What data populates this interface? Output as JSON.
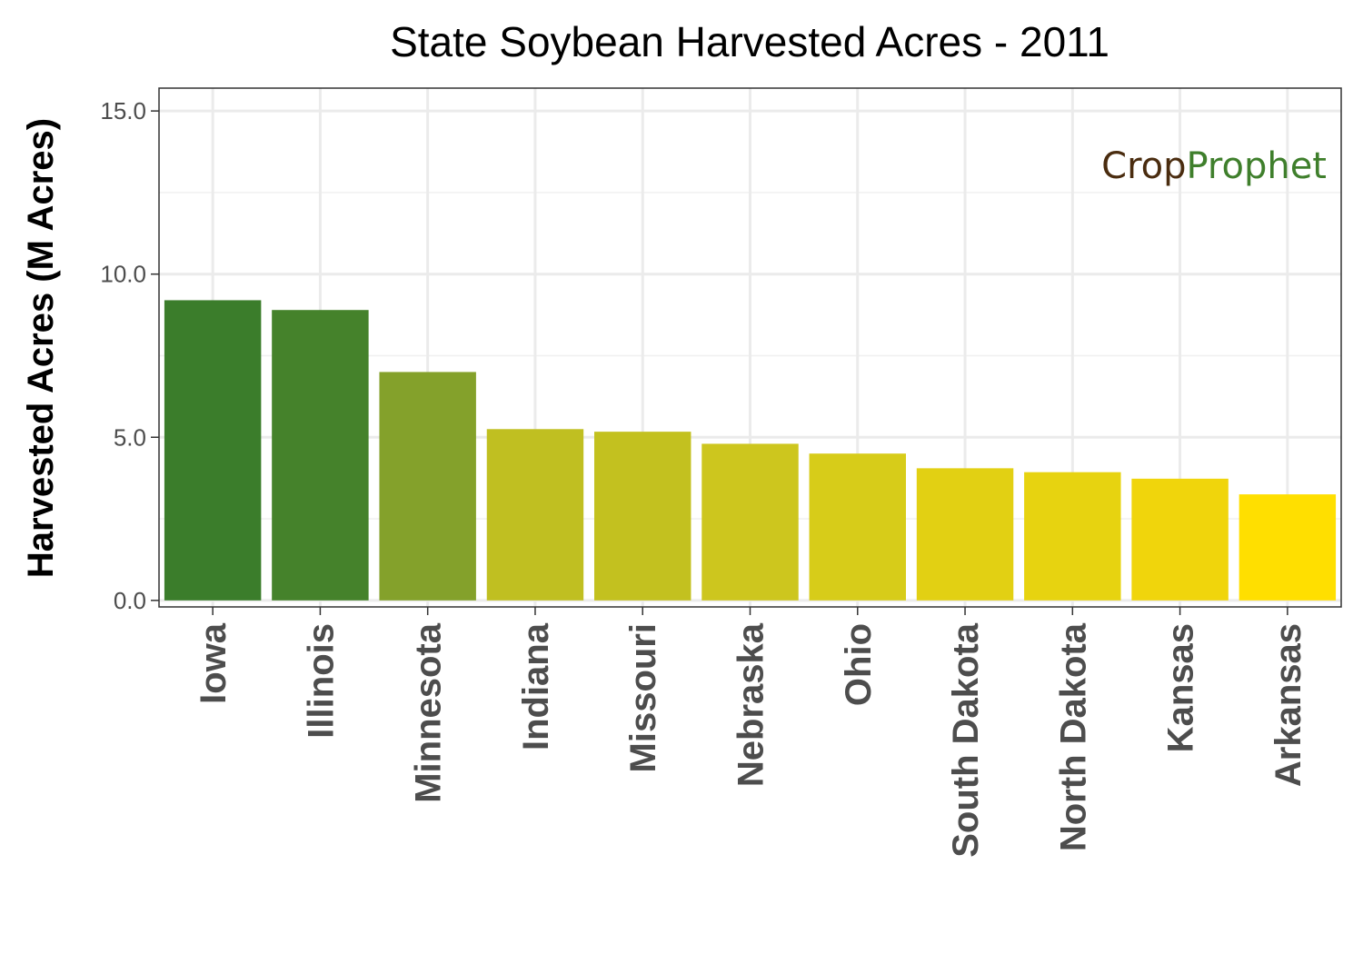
{
  "chart_data": {
    "type": "bar",
    "title": "State Soybean Harvested Acres - 2011",
    "xlabel": "",
    "ylabel": "Harvested Acres (M Acres)",
    "ylim": [
      -0.2,
      15.7
    ],
    "yticks": [
      0,
      5,
      10,
      15
    ],
    "ytick_labels": [
      "0.0",
      "5.0",
      "10.0",
      "15.0"
    ],
    "grid": true,
    "legend": "none",
    "categories": [
      "Iowa",
      "Illinois",
      "Minnesota",
      "Indiana",
      "Missouri",
      "Nebraska",
      "Ohio",
      "South Dakota",
      "North Dakota",
      "Kansas",
      "Arkansas"
    ],
    "values": [
      9.2,
      8.9,
      7.0,
      5.25,
      5.17,
      4.8,
      4.5,
      4.05,
      3.93,
      3.73,
      3.25
    ],
    "colors": [
      "#3b7d2b",
      "#45822b",
      "#84a12b",
      "#c0bf21",
      "#c3c11f",
      "#cdc61e",
      "#d7cc19",
      "#e2d013",
      "#e7d310",
      "#f0d50c",
      "#ffdf00"
    ]
  },
  "logo": {
    "part1": "Crop",
    "part2": "Prophet",
    "color1": "#4a2c0f",
    "color2": "#3f7f2c"
  }
}
